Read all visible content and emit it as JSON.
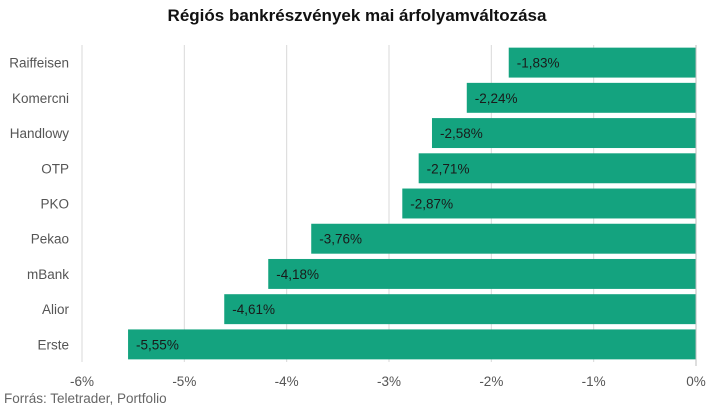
{
  "chart_data": {
    "type": "bar",
    "orientation": "horizontal",
    "title": "Régiós bankrészvények mai árfolyamváltozása",
    "categories": [
      "Raiffeisen",
      "Komercni",
      "Handlowy",
      "OTP",
      "PKO",
      "Pekao",
      "mBank",
      "Alior",
      "Erste"
    ],
    "values": [
      -1.83,
      -2.24,
      -2.58,
      -2.71,
      -2.87,
      -3.76,
      -4.18,
      -4.61,
      -5.55
    ],
    "data_labels": [
      "-1,83%",
      "-2,24%",
      "-2,58%",
      "-2,71%",
      "-2,87%",
      "-3,76%",
      "-4,18%",
      "-4,61%",
      "-5,55%"
    ],
    "xlim": [
      -6,
      0
    ],
    "x_ticks": [
      -6,
      -5,
      -4,
      -3,
      -2,
      -1,
      0
    ],
    "x_tick_labels": [
      "-6%",
      "-5%",
      "-4%",
      "-3%",
      "-2%",
      "-1%",
      "0%"
    ],
    "xlabel": "",
    "ylabel": "",
    "grid": "vertical",
    "legend": "none",
    "bar_color": "#14a37f"
  },
  "source": "Forrás: Teletrader, Portfolio"
}
